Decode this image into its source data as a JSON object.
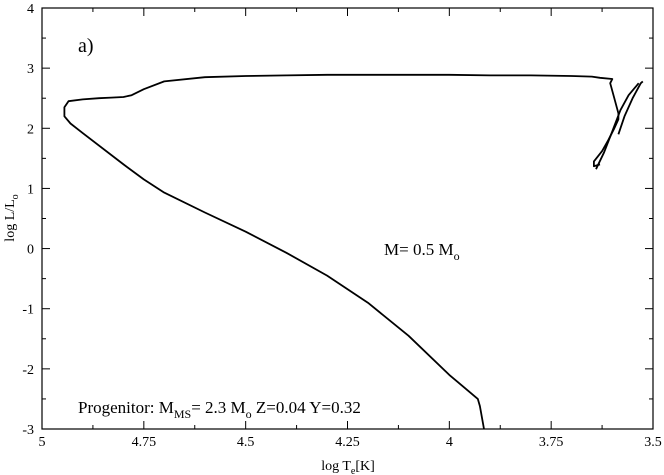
{
  "chart_data": {
    "type": "line",
    "title": "",
    "panel_label": "a)",
    "xlabel": {
      "main": "log T",
      "sub": "e",
      "tail": "[K]"
    },
    "ylabel": {
      "main": "log L/L",
      "sub": "o"
    },
    "xlim": [
      5,
      3.5
    ],
    "ylim": [
      -3,
      4
    ],
    "x_reversed": true,
    "grid": false,
    "legend": "none",
    "xticks": [
      5,
      4.75,
      4.5,
      4.25,
      4,
      3.75,
      3.5
    ],
    "xtick_labels": [
      "5",
      "4.75",
      "4.5",
      "4.25",
      "4",
      "3.75",
      "3.5"
    ],
    "yticks": [
      -3,
      -2,
      -1,
      0,
      1,
      2,
      3,
      4
    ],
    "ytick_labels": [
      "-3",
      "-2",
      "-1",
      "0",
      "1",
      "2",
      "3",
      "4"
    ],
    "annotations": {
      "mass": {
        "prefix": "M= 0.5 M",
        "sub": "o"
      },
      "progenitor": {
        "a": "Progenitor: M",
        "a_sub": "MS",
        "b": "= 2.3 M",
        "b_sub": "o",
        "c": " Z=0.04 Y=0.32"
      }
    },
    "series": [
      {
        "color": "#000000",
        "points": [
          [
            3.63,
            1.4
          ],
          [
            3.645,
            1.37
          ],
          [
            3.645,
            1.45
          ],
          [
            3.625,
            1.62
          ],
          [
            3.61,
            1.8
          ],
          [
            3.595,
            2.0
          ],
          [
            3.585,
            2.15
          ],
          [
            3.585,
            2.25
          ],
          [
            3.595,
            2.5
          ],
          [
            3.605,
            2.75
          ],
          [
            3.6,
            2.82
          ],
          [
            3.63,
            2.84
          ],
          [
            3.65,
            2.86
          ],
          [
            3.7,
            2.87
          ],
          [
            3.8,
            2.88
          ],
          [
            3.9,
            2.88
          ],
          [
            4.0,
            2.89
          ],
          [
            4.1,
            2.89
          ],
          [
            4.2,
            2.89
          ],
          [
            4.3,
            2.89
          ],
          [
            4.4,
            2.88
          ],
          [
            4.5,
            2.87
          ],
          [
            4.6,
            2.85
          ],
          [
            4.7,
            2.78
          ],
          [
            4.75,
            2.65
          ],
          [
            4.78,
            2.55
          ],
          [
            4.8,
            2.52
          ],
          [
            4.83,
            2.51
          ],
          [
            4.86,
            2.5
          ],
          [
            4.9,
            2.48
          ],
          [
            4.935,
            2.45
          ],
          [
            4.945,
            2.35
          ],
          [
            4.945,
            2.2
          ],
          [
            4.93,
            2.08
          ],
          [
            4.9,
            1.92
          ],
          [
            4.8,
            1.4
          ],
          [
            4.75,
            1.15
          ],
          [
            4.7,
            0.93
          ],
          [
            4.6,
            0.6
          ],
          [
            4.5,
            0.28
          ],
          [
            4.4,
            -0.07
          ],
          [
            4.3,
            -0.45
          ],
          [
            4.2,
            -0.9
          ],
          [
            4.1,
            -1.45
          ],
          [
            4.0,
            -2.1
          ],
          [
            3.93,
            -2.5
          ],
          [
            3.925,
            -2.62
          ],
          [
            3.915,
            -3.0
          ]
        ]
      },
      {
        "color": "#000000",
        "points": [
          [
            3.64,
            1.32
          ],
          [
            3.62,
            1.6
          ],
          [
            3.6,
            1.95
          ],
          [
            3.58,
            2.3
          ],
          [
            3.56,
            2.55
          ],
          [
            3.535,
            2.75
          ]
        ]
      },
      {
        "color": "#000000",
        "points": [
          [
            3.585,
            1.9
          ],
          [
            3.57,
            2.2
          ],
          [
            3.55,
            2.5
          ],
          [
            3.53,
            2.75
          ],
          [
            3.525,
            2.78
          ]
        ]
      }
    ]
  }
}
